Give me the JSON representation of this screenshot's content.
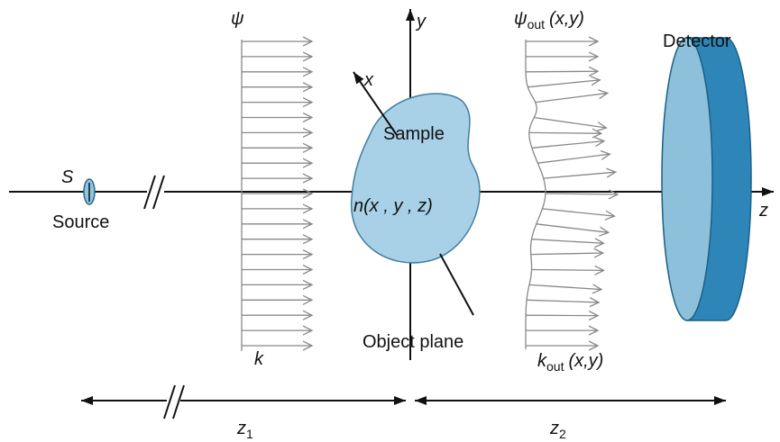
{
  "source": {
    "symbol": "S",
    "label": "Source"
  },
  "incident_wave": {
    "symbol": "ψ",
    "wavevector": "k"
  },
  "axes": {
    "y": "y",
    "x": "x",
    "z": "z"
  },
  "sample": {
    "label": "Sample",
    "index": "n(x , y , z)"
  },
  "object_plane": "Object plane",
  "exit_wave": {
    "symbol": "ψ",
    "subscript": "out",
    "args": "(x,y)"
  },
  "exit_wavevector": {
    "symbol": "k",
    "subscript": "out",
    "args": "(x,y)"
  },
  "detector": "Detector",
  "distances": {
    "z1": {
      "symbol": "z",
      "subscript": "1"
    },
    "z2": {
      "symbol": "z",
      "subscript": "2"
    }
  }
}
